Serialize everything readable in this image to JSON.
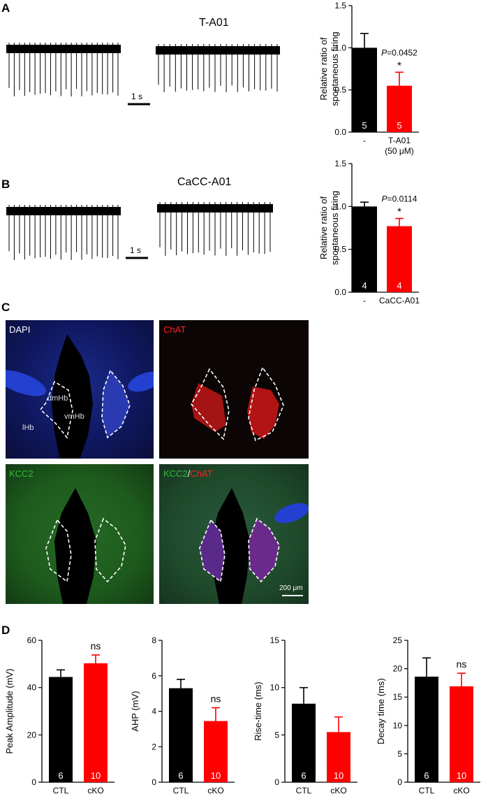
{
  "panels": {
    "A": "A",
    "B": "B",
    "C": "C",
    "D": "D"
  },
  "traces": {
    "A": {
      "title": "T-A01",
      "scale": "1 s"
    },
    "B": {
      "title": "CaCC-A01",
      "scale": "1 s"
    }
  },
  "micrographs": {
    "dapi": "DAPI",
    "chat": "ChAT",
    "kcc2": "KCC2",
    "merge_kcc2": "KCC2",
    "merge_slash": "/",
    "merge_chat": "ChAT",
    "regions": {
      "dmhb": "dmHb",
      "vmhb": "vmHb",
      "lhb": "lHb"
    },
    "scale_bar": "200 μm"
  },
  "colors": {
    "black_bar": "#000000",
    "red_bar": "#ff0000",
    "dapi_bg": "#0a0f3a",
    "kcc2_bg": "#1d5a1d"
  },
  "chart_data": [
    {
      "id": "A",
      "type": "bar",
      "ylabel": [
        "Relative ratio of",
        "spontaneous firing"
      ],
      "ylim": [
        0,
        1.5
      ],
      "yticks": [
        "0.0",
        "0.5",
        "1.0",
        "1.5"
      ],
      "categories": [
        "-",
        "T-A01"
      ],
      "category_sublabels": [
        "",
        "(50 μM)"
      ],
      "values": [
        1.0,
        0.55
      ],
      "errors": [
        0.17,
        0.16
      ],
      "n": [
        "5",
        "5"
      ],
      "p_label": "P",
      "p_text": "=0.0452",
      "sig": "*"
    },
    {
      "id": "B",
      "type": "bar",
      "ylabel": [
        "Relative ratio of",
        "spontaneous firing"
      ],
      "ylim": [
        0,
        1.5
      ],
      "yticks": [
        "0.0",
        "0.5",
        "1.0",
        "1.5"
      ],
      "categories": [
        "-",
        "CaCC-A01"
      ],
      "category_sublabels": [
        "",
        ""
      ],
      "values": [
        1.0,
        0.77
      ],
      "errors": [
        0.05,
        0.09
      ],
      "n": [
        "4",
        "4"
      ],
      "p_label": "P",
      "p_text": "=0.0114",
      "sig": "*"
    },
    {
      "id": "D1",
      "type": "bar",
      "ylabel": [
        "Peak Amplitude (mV)"
      ],
      "ylim": [
        0,
        60
      ],
      "yticks": [
        "0",
        "20",
        "40",
        "60"
      ],
      "categories": [
        "CTL",
        "cKO"
      ],
      "values": [
        44.5,
        50.3
      ],
      "errors": [
        3.0,
        3.5
      ],
      "n": [
        "6",
        "10"
      ],
      "sig": "ns",
      "sig_over": 1
    },
    {
      "id": "D2",
      "type": "bar",
      "ylabel": [
        "AHP (mV)"
      ],
      "ylim": [
        0,
        8
      ],
      "yticks": [
        "0",
        "2",
        "4",
        "6",
        "8"
      ],
      "categories": [
        "CTL",
        "cKO"
      ],
      "values": [
        5.3,
        3.45
      ],
      "errors": [
        0.5,
        0.75
      ],
      "n": [
        "6",
        "10"
      ],
      "sig": "ns",
      "sig_over": 1
    },
    {
      "id": "D3",
      "type": "bar",
      "ylabel": [
        "Rise-time (ms)"
      ],
      "ylim": [
        0,
        15
      ],
      "yticks": [
        "0",
        "5",
        "10",
        "15"
      ],
      "categories": [
        "CTL",
        "cKO"
      ],
      "values": [
        8.3,
        5.3
      ],
      "errors": [
        1.7,
        1.6
      ],
      "n": [
        "6",
        "10"
      ],
      "sig": "",
      "sig_over": 1
    },
    {
      "id": "D4",
      "type": "bar",
      "ylabel": [
        "Decay time (ms)"
      ],
      "ylim": [
        0,
        25
      ],
      "yticks": [
        "0",
        "5",
        "10",
        "15",
        "20",
        "25"
      ],
      "categories": [
        "CTL",
        "cKO"
      ],
      "values": [
        18.6,
        16.9
      ],
      "errors": [
        3.3,
        2.3
      ],
      "n": [
        "6",
        "10"
      ],
      "sig": "ns",
      "sig_over": 1
    }
  ]
}
